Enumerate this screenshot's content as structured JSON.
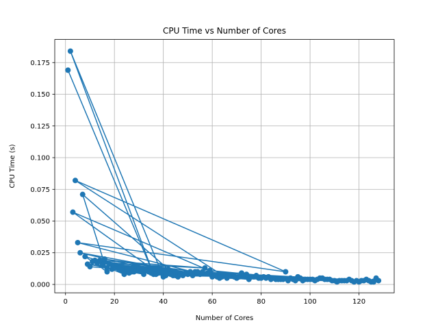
{
  "chart_data": {
    "type": "line",
    "title": "CPU Time vs Number of Cores",
    "xlabel": "Number of Cores",
    "ylabel": "CPU Time (s)",
    "xlim": [
      -4.4,
      134.4
    ],
    "ylim": [
      -0.0066,
      0.1932
    ],
    "xticks": [
      0,
      20,
      40,
      60,
      80,
      100,
      120
    ],
    "yticks": [
      0.0,
      0.025,
      0.05,
      0.075,
      0.1,
      0.125,
      0.15,
      0.175
    ],
    "xtick_labels": [
      "0",
      "20",
      "40",
      "60",
      "80",
      "100",
      "120"
    ],
    "ytick_labels": [
      "0.000",
      "0.025",
      "0.050",
      "0.075",
      "0.100",
      "0.125",
      "0.150",
      "0.175"
    ],
    "grid": true,
    "marker": "o",
    "color": "#1f77b4",
    "series": [
      {
        "x": [
          1,
          36,
          2,
          40,
          3,
          66,
          4,
          90,
          5,
          60,
          6,
          45,
          7,
          17,
          8,
          32,
          9,
          64,
          10,
          50,
          11,
          70,
          12,
          38,
          13,
          57,
          14,
          24,
          15,
          42,
          16,
          75,
          17,
          28,
          18,
          48,
          19,
          55,
          20,
          33,
          21,
          62,
          22,
          44,
          23,
          80,
          24,
          26,
          25,
          51,
          27,
          68,
          29,
          35,
          30,
          58,
          31,
          46,
          34,
          72,
          37,
          53,
          39,
          61,
          41,
          77,
          43,
          65,
          47,
          84,
          49,
          71,
          52,
          88,
          54,
          79,
          56,
          92,
          59,
          86,
          63,
          95,
          67,
          98,
          69,
          101,
          73,
          104,
          74,
          107,
          76,
          110,
          78,
          113,
          81,
          116,
          82,
          119,
          83,
          122,
          85,
          125,
          87,
          128,
          89,
          96,
          91,
          99,
          93,
          102,
          94,
          105,
          97,
          108,
          100,
          111,
          103,
          114,
          106,
          117,
          109,
          120,
          112,
          123,
          115,
          126,
          118,
          121,
          124,
          127
        ],
        "y": [
          0.169,
          0.008,
          0.184,
          0.006,
          0.057,
          0.005,
          0.082,
          0.01,
          0.033,
          0.006,
          0.025,
          0.007,
          0.071,
          0.01,
          0.022,
          0.008,
          0.016,
          0.006,
          0.014,
          0.008,
          0.018,
          0.005,
          0.019,
          0.009,
          0.017,
          0.013,
          0.019,
          0.008,
          0.015,
          0.012,
          0.02,
          0.004,
          0.013,
          0.01,
          0.016,
          0.007,
          0.012,
          0.008,
          0.015,
          0.011,
          0.014,
          0.006,
          0.013,
          0.007,
          0.011,
          0.005,
          0.01,
          0.009,
          0.012,
          0.01,
          0.01,
          0.007,
          0.011,
          0.009,
          0.012,
          0.009,
          0.011,
          0.006,
          0.01,
          0.009,
          0.008,
          0.01,
          0.009,
          0.007,
          0.007,
          0.006,
          0.008,
          0.007,
          0.008,
          0.004,
          0.009,
          0.006,
          0.007,
          0.004,
          0.01,
          0.005,
          0.01,
          0.005,
          0.011,
          0.004,
          0.005,
          0.006,
          0.007,
          0.004,
          0.006,
          0.004,
          0.007,
          0.005,
          0.008,
          0.004,
          0.006,
          0.003,
          0.007,
          0.003,
          0.006,
          0.004,
          0.005,
          0.003,
          0.006,
          0.003,
          0.005,
          0.002,
          0.004,
          0.003,
          0.004,
          0.005,
          0.003,
          0.004,
          0.004,
          0.003,
          0.003,
          0.005,
          0.003,
          0.004,
          0.004,
          0.002,
          0.004,
          0.003,
          0.004,
          0.003,
          0.003,
          0.002,
          0.003,
          0.004,
          0.003,
          0.002,
          0.002,
          0.003,
          0.003,
          0.005
        ]
      }
    ]
  }
}
